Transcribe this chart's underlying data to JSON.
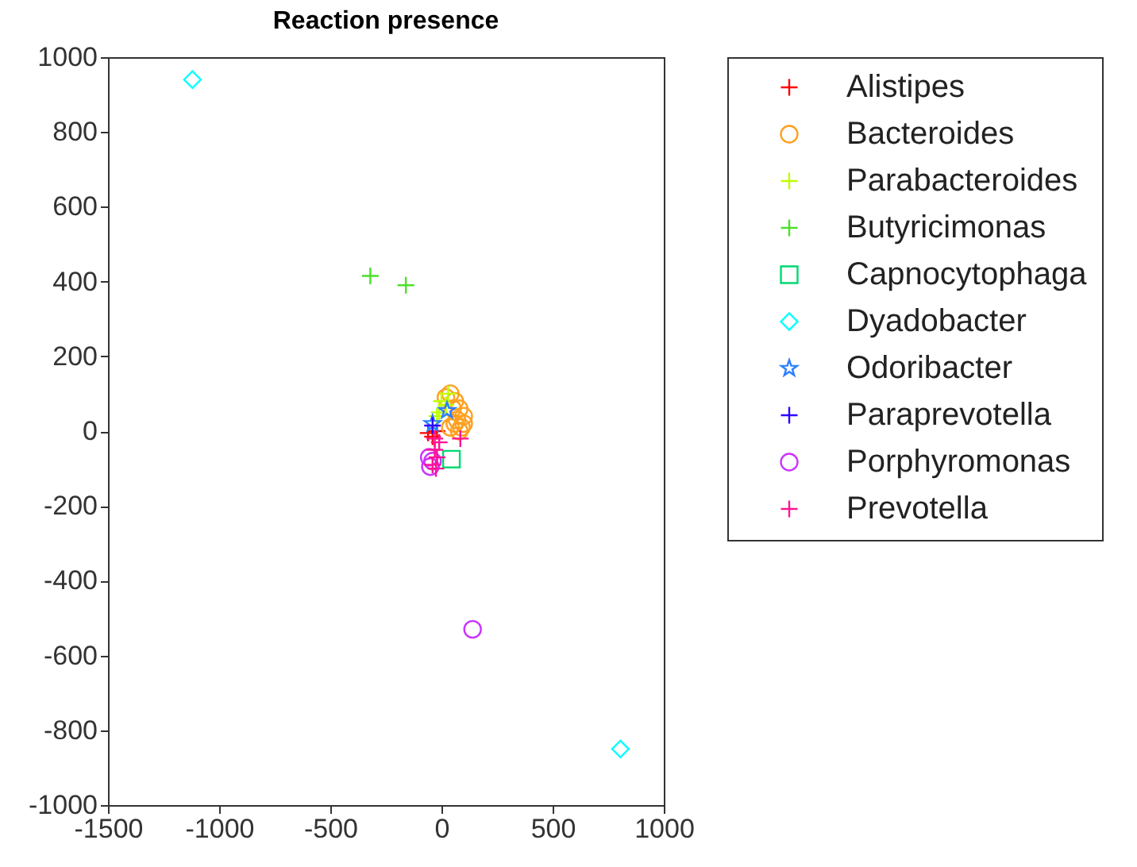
{
  "chart_data": {
    "type": "scatter",
    "title": "Reaction presence",
    "xlim": [
      -1500,
      1000
    ],
    "xticks": [
      {
        "value": -1500,
        "label": "-1500"
      },
      {
        "value": -1000,
        "label": "-1000"
      },
      {
        "value": -500,
        "label": "-500"
      },
      0,
      500,
      {
        "value": 1000,
        "label": "1000"
      }
    ],
    "ylim": [
      -1000,
      1000
    ],
    "yticks": [
      {
        "value": -1000,
        "label": "-1000"
      },
      {
        "value": -800,
        "label": "-800"
      },
      {
        "value": -600,
        "label": "-600"
      },
      {
        "value": -400,
        "label": "-400"
      },
      {
        "value": -200,
        "label": "-200"
      },
      0,
      200,
      400,
      600,
      800,
      {
        "value": 1000,
        "label": "1000"
      }
    ],
    "legend": "right",
    "grid": false,
    "series": [
      {
        "name": "Alistipes",
        "color": "#ff0000",
        "marker": "cross",
        "x": [
          -60,
          -40,
          -20
        ],
        "values": [
          -5,
          -15,
          0
        ]
      },
      {
        "name": "Bacteroides",
        "color": "#ffa020",
        "marker": "circle",
        "x": [
          20,
          40,
          60,
          80,
          100,
          100,
          90,
          70,
          50,
          60,
          80,
          40
        ],
        "values": [
          90,
          100,
          80,
          60,
          40,
          20,
          10,
          30,
          60,
          20,
          0,
          10
        ]
      },
      {
        "name": "Parabacteroides",
        "color": "#bfff00",
        "marker": "cross",
        "x": [
          0,
          -10,
          20,
          30,
          -20
        ],
        "values": [
          80,
          50,
          70,
          100,
          40
        ]
      },
      {
        "name": "Butyricimonas",
        "color": "#4ce02a",
        "marker": "cross",
        "x": [
          -320,
          -160
        ],
        "values": [
          415,
          390
        ]
      },
      {
        "name": "Capnocytophaga",
        "color": "#00d970",
        "marker": "square",
        "x": [
          45
        ],
        "values": [
          -75
        ]
      },
      {
        "name": "Dyadobacter",
        "color": "#00ffff",
        "marker": "diamond",
        "x": [
          -1120,
          805
        ],
        "values": [
          940,
          -850
        ]
      },
      {
        "name": "Odoribacter",
        "color": "#2a7fff",
        "marker": "star",
        "x": [
          25,
          -40
        ],
        "values": [
          55,
          20
        ]
      },
      {
        "name": "Paraprevotella",
        "color": "#3000ff",
        "marker": "cross",
        "x": [
          -40
        ],
        "values": [
          15
        ]
      },
      {
        "name": "Porphyromonas",
        "color": "#cc33ff",
        "marker": "circle",
        "x": [
          140,
          -50,
          -40,
          -55
        ],
        "values": [
          -530,
          -95,
          -80,
          -70
        ]
      },
      {
        "name": "Prevotella",
        "color": "#ff1493",
        "marker": "cross",
        "x": [
          -10,
          -30,
          -20,
          -40,
          -25,
          85,
          -30
        ],
        "values": [
          -30,
          -50,
          -70,
          -90,
          -100,
          -20,
          -20
        ]
      }
    ]
  }
}
